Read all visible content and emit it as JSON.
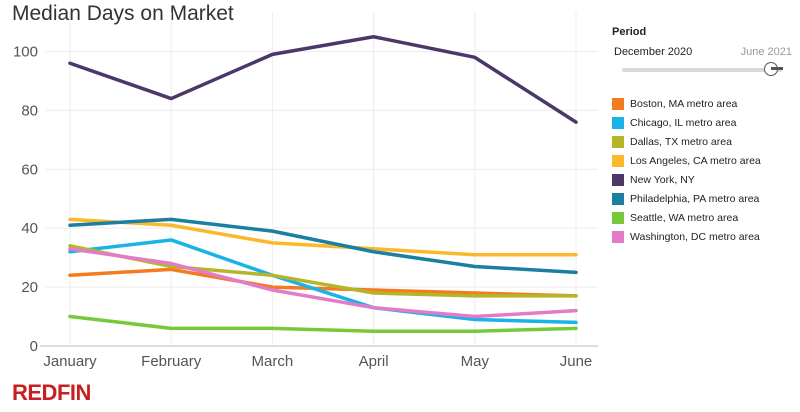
{
  "chart_data": {
    "type": "line",
    "title": "Median Days on Market",
    "categories": [
      "January",
      "February",
      "March",
      "April",
      "May",
      "June"
    ],
    "ylim": [
      0,
      110
    ],
    "yticks": [
      0,
      20,
      40,
      60,
      80,
      100
    ],
    "grid": true,
    "legend_placement": "right",
    "series": [
      {
        "name": "Boston, MA metro area",
        "color": "#f47b20",
        "values": [
          24,
          26,
          20,
          19,
          18,
          17
        ]
      },
      {
        "name": "Chicago, IL metro area",
        "color": "#1ab3e8",
        "values": [
          32,
          36,
          24,
          13,
          9,
          8
        ]
      },
      {
        "name": "Dallas, TX metro area",
        "color": "#b5b52a",
        "values": [
          34,
          27,
          24,
          18,
          17,
          17
        ]
      },
      {
        "name": "Los Angeles, CA metro area",
        "color": "#fbb829",
        "values": [
          43,
          41,
          35,
          33,
          31,
          31
        ]
      },
      {
        "name": "New York, NY",
        "color": "#4b3768",
        "values": [
          96,
          84,
          99,
          105,
          98,
          76
        ]
      },
      {
        "name": "Philadelphia, PA metro area",
        "color": "#1a7fa0",
        "values": [
          41,
          43,
          39,
          32,
          27,
          25
        ]
      },
      {
        "name": "Seattle, WA metro area",
        "color": "#77c93a",
        "values": [
          10,
          6,
          6,
          5,
          5,
          6
        ]
      },
      {
        "name": "Washington, DC metro area",
        "color": "#e37bc9",
        "values": [
          33,
          28,
          19,
          13,
          10,
          12
        ]
      }
    ]
  },
  "period": {
    "title": "Period",
    "start_label": "December 2020",
    "end_label": "June 2021"
  },
  "brand": {
    "logo_text": "REDFIN",
    "color": "#c82021"
  }
}
